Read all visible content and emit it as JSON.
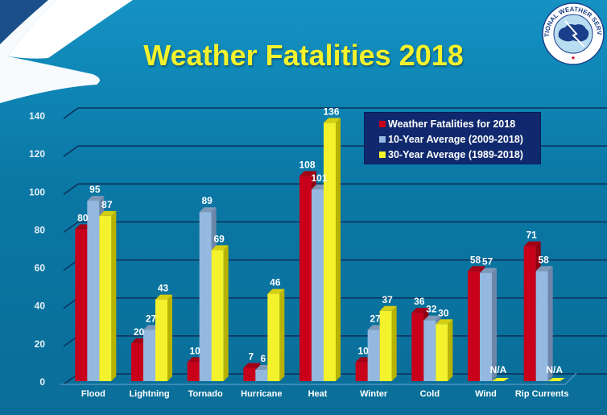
{
  "header": {
    "title": "Weather Fatalities 2018",
    "logo_text": "NATIONAL WEATHER SERVICE"
  },
  "chart_data": {
    "type": "bar",
    "title": "Weather Fatalities 2018",
    "xlabel": "",
    "ylabel": "",
    "ylim": [
      0,
      140
    ],
    "yticks": [
      0,
      20,
      40,
      60,
      80,
      100,
      120,
      140
    ],
    "grid": true,
    "legend_position": "top-right",
    "categories": [
      "Flood",
      "Lightning",
      "Tornado",
      "Hurricane",
      "Heat",
      "Winter",
      "Cold",
      "Wind",
      "Rip Currents"
    ],
    "series": [
      {
        "name": "Weather Fatalities for 2018",
        "color": "#c8001a",
        "values": [
          80,
          20,
          10,
          7,
          108,
          10,
          36,
          58,
          71
        ]
      },
      {
        "name": "10-Year Average (2009-2018)",
        "color": "#94b8e0",
        "values": [
          95,
          27,
          89,
          6,
          101,
          27,
          32,
          57,
          58
        ]
      },
      {
        "name": "30-Year Average (1989-2018)",
        "color": "#f4f22c",
        "values": [
          87,
          43,
          69,
          46,
          136,
          37,
          30,
          null,
          null
        ]
      }
    ],
    "missing_label": "N/A"
  },
  "colors": {
    "title": "#f4f22c",
    "legend_bg": "#10296e",
    "gridline": "#0b2f5a"
  }
}
